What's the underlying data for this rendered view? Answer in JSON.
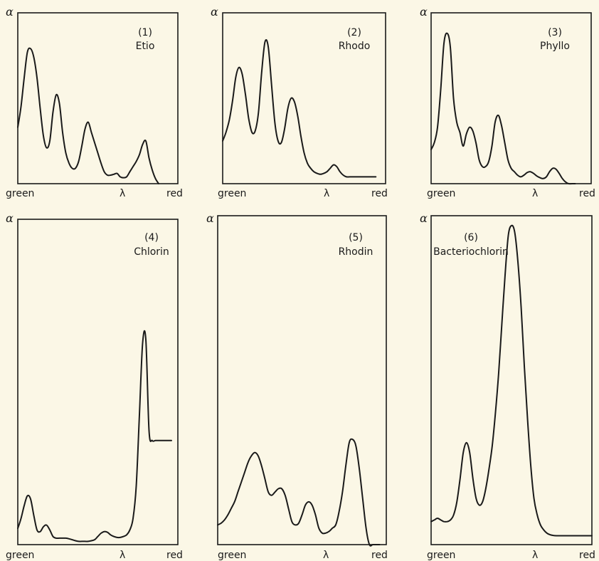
{
  "chart_data": [
    {
      "type": "line",
      "number_label": "(1)",
      "name_label": "Etio",
      "y_axis_label": "α",
      "x_axis_labels": {
        "left": "green",
        "center": "λ",
        "right": "red"
      },
      "x": [
        0,
        2,
        4,
        6,
        8,
        10,
        12,
        14,
        16,
        18,
        20,
        22,
        24,
        26,
        28,
        30,
        32,
        34,
        36,
        38,
        40,
        42,
        44,
        46,
        48,
        50,
        52,
        54,
        56,
        58,
        60,
        62,
        64,
        66,
        68,
        70,
        72,
        74,
        76,
        78,
        80,
        82,
        84,
        86,
        88
      ],
      "y": [
        0.33,
        0.45,
        0.62,
        0.77,
        0.79,
        0.74,
        0.62,
        0.44,
        0.28,
        0.21,
        0.25,
        0.42,
        0.52,
        0.47,
        0.3,
        0.18,
        0.12,
        0.09,
        0.09,
        0.13,
        0.22,
        0.32,
        0.36,
        0.3,
        0.24,
        0.18,
        0.12,
        0.07,
        0.05,
        0.05,
        0.055,
        0.06,
        0.04,
        0.035,
        0.04,
        0.07,
        0.1,
        0.13,
        0.17,
        0.23,
        0.25,
        0.15,
        0.08,
        0.03,
        0.0
      ],
      "xlim": [
        0,
        100
      ],
      "ylim": [
        0,
        1
      ]
    },
    {
      "type": "line",
      "number_label": "(2)",
      "name_label": "Rhodo",
      "y_axis_label": "α",
      "x_axis_labels": {
        "left": "green",
        "center": "λ",
        "right": "red"
      },
      "x": [
        0,
        2,
        4,
        6,
        8,
        10,
        12,
        14,
        16,
        18,
        20,
        22,
        24,
        26,
        28,
        30,
        32,
        34,
        36,
        38,
        40,
        42,
        44,
        46,
        48,
        50,
        52,
        54,
        56,
        58,
        60,
        62,
        64,
        66,
        68,
        70,
        72,
        74,
        76,
        78,
        80,
        82,
        84,
        86,
        88,
        90,
        92,
        94
      ],
      "y": [
        0.25,
        0.3,
        0.37,
        0.48,
        0.62,
        0.68,
        0.64,
        0.52,
        0.38,
        0.3,
        0.31,
        0.42,
        0.66,
        0.83,
        0.8,
        0.58,
        0.36,
        0.25,
        0.24,
        0.32,
        0.44,
        0.5,
        0.48,
        0.4,
        0.28,
        0.18,
        0.12,
        0.09,
        0.07,
        0.06,
        0.055,
        0.06,
        0.07,
        0.09,
        0.11,
        0.1,
        0.07,
        0.05,
        0.04,
        0.04,
        0.04,
        0.04,
        0.04,
        0.04,
        0.04,
        0.04,
        0.04,
        0.04
      ],
      "xlim": [
        0,
        100
      ],
      "ylim": [
        0,
        1
      ]
    },
    {
      "type": "line",
      "number_label": "(3)",
      "name_label": "Phyllo",
      "y_axis_label": "α",
      "x_axis_labels": {
        "left": "green",
        "center": "λ",
        "right": "red"
      },
      "x": [
        0,
        2,
        4,
        6,
        8,
        10,
        12,
        14,
        16,
        18,
        20,
        22,
        24,
        26,
        28,
        30,
        32,
        34,
        36,
        38,
        40,
        42,
        44,
        46,
        48,
        50,
        52,
        54,
        56,
        58,
        60,
        62,
        64,
        66,
        68,
        70,
        72,
        74,
        76,
        78,
        80,
        82,
        84,
        86,
        88,
        90
      ],
      "y": [
        0.2,
        0.24,
        0.33,
        0.55,
        0.82,
        0.88,
        0.8,
        0.5,
        0.36,
        0.3,
        0.22,
        0.29,
        0.33,
        0.31,
        0.24,
        0.14,
        0.1,
        0.1,
        0.13,
        0.22,
        0.36,
        0.4,
        0.34,
        0.24,
        0.14,
        0.09,
        0.07,
        0.05,
        0.04,
        0.05,
        0.065,
        0.07,
        0.06,
        0.045,
        0.035,
        0.03,
        0.04,
        0.07,
        0.09,
        0.085,
        0.06,
        0.03,
        0.01,
        0.0,
        0.0,
        0.0
      ],
      "xlim": [
        0,
        100
      ],
      "ylim": [
        0,
        1
      ]
    },
    {
      "type": "line",
      "number_label": "(4)",
      "name_label": "Chlorin",
      "y_axis_label": "α",
      "x_axis_labels": {
        "left": "green",
        "center": "λ",
        "right": "red"
      },
      "x": [
        0,
        2,
        4,
        6,
        8,
        10,
        12,
        14,
        16,
        18,
        20,
        22,
        24,
        26,
        28,
        30,
        32,
        34,
        36,
        38,
        40,
        42,
        44,
        46,
        48,
        50,
        52,
        54,
        56,
        58,
        60,
        62,
        64,
        66,
        68,
        70,
        72,
        74,
        76,
        78,
        80,
        82,
        84,
        86,
        88,
        90,
        92,
        94,
        96
      ],
      "y": [
        0.05,
        0.08,
        0.12,
        0.15,
        0.14,
        0.09,
        0.045,
        0.04,
        0.055,
        0.06,
        0.045,
        0.025,
        0.02,
        0.02,
        0.02,
        0.02,
        0.018,
        0.015,
        0.012,
        0.01,
        0.01,
        0.01,
        0.01,
        0.012,
        0.015,
        0.025,
        0.035,
        0.04,
        0.038,
        0.03,
        0.025,
        0.022,
        0.022,
        0.025,
        0.03,
        0.045,
        0.08,
        0.18,
        0.4,
        0.62,
        0.63,
        0.35,
        0.32,
        0.32,
        0.32,
        0.32,
        0.32,
        0.32,
        0.32
      ],
      "xlim": [
        0,
        100
      ],
      "ylim": [
        0,
        1
      ]
    },
    {
      "type": "line",
      "number_label": "(5)",
      "name_label": "Rhodin",
      "y_axis_label": "α",
      "x_axis_labels": {
        "left": "green",
        "center": "λ",
        "right": "red"
      },
      "x": [
        0,
        2,
        4,
        6,
        8,
        10,
        12,
        14,
        16,
        18,
        20,
        22,
        24,
        26,
        28,
        30,
        32,
        34,
        36,
        38,
        40,
        42,
        44,
        46,
        48,
        50,
        52,
        54,
        56,
        58,
        60,
        62,
        64,
        66,
        68,
        70,
        72,
        74,
        76,
        78,
        80,
        82,
        84,
        86,
        88,
        90,
        92,
        94,
        96
      ],
      "y": [
        0.06,
        0.065,
        0.075,
        0.09,
        0.11,
        0.13,
        0.16,
        0.19,
        0.22,
        0.25,
        0.27,
        0.28,
        0.27,
        0.24,
        0.2,
        0.16,
        0.15,
        0.16,
        0.17,
        0.17,
        0.15,
        0.11,
        0.07,
        0.06,
        0.065,
        0.09,
        0.12,
        0.13,
        0.12,
        0.09,
        0.05,
        0.035,
        0.035,
        0.04,
        0.05,
        0.06,
        0.1,
        0.16,
        0.24,
        0.31,
        0.32,
        0.3,
        0.23,
        0.14,
        0.05,
        0.0,
        0.0,
        0.0,
        0.0
      ],
      "xlim": [
        0,
        100
      ],
      "ylim": [
        0,
        1
      ]
    },
    {
      "type": "line",
      "number_label": "(6)",
      "name_label": "Bacteriochlorin",
      "y_axis_label": "α",
      "x_axis_labels": {
        "left": "green",
        "center": "λ",
        "right": "red"
      },
      "x": [
        0,
        2,
        4,
        6,
        8,
        10,
        12,
        14,
        16,
        18,
        20,
        22,
        24,
        26,
        28,
        30,
        32,
        34,
        36,
        38,
        40,
        42,
        44,
        46,
        48,
        50,
        52,
        54,
        56,
        58,
        60,
        62,
        64,
        66,
        68,
        70,
        72,
        74,
        76,
        78,
        80,
        82,
        84,
        86,
        88,
        90,
        92,
        94,
        96,
        98,
        100
      ],
      "y": [
        0.07,
        0.075,
        0.08,
        0.075,
        0.07,
        0.07,
        0.075,
        0.09,
        0.13,
        0.2,
        0.28,
        0.31,
        0.28,
        0.2,
        0.14,
        0.12,
        0.13,
        0.17,
        0.23,
        0.3,
        0.4,
        0.52,
        0.67,
        0.82,
        0.94,
        0.97,
        0.95,
        0.86,
        0.72,
        0.54,
        0.38,
        0.24,
        0.14,
        0.09,
        0.06,
        0.045,
        0.035,
        0.03,
        0.028,
        0.027,
        0.027,
        0.027,
        0.027,
        0.027,
        0.027,
        0.027,
        0.027,
        0.027,
        0.027,
        0.027,
        0.027
      ],
      "xlim": [
        0,
        100
      ],
      "ylim": [
        0,
        1
      ]
    }
  ]
}
